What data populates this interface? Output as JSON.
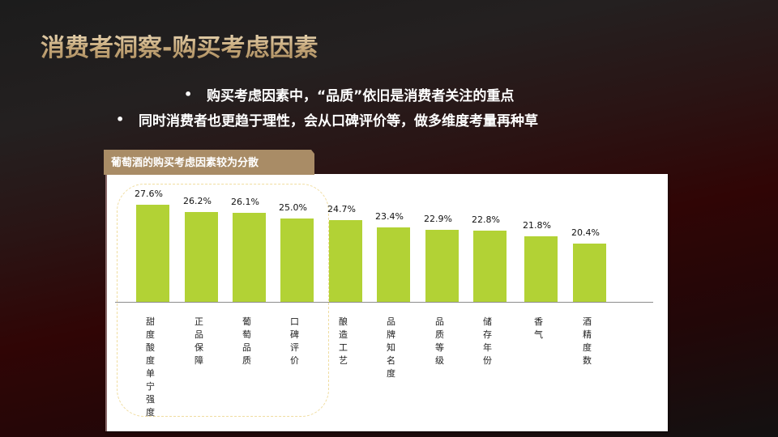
{
  "slide": {
    "title": "消费者洞察-购买考虑因素",
    "bullets": [
      "购买考虑因素中，“品质”依旧是消费者关注的重点",
      "同时消费者也更趋于理性，会从口碑评价等，做多维度考量再种草"
    ],
    "bullet_symbol": "•",
    "section_tag": "葡萄酒的购买考虑因素较为分散"
  },
  "colors": {
    "bar": "#b2d235",
    "tag_background": "#a98c66",
    "title_gold": "#c8aa7c",
    "highlight_border": "#f0dda0"
  },
  "chart_data": {
    "type": "bar",
    "title": "葡萄酒的购买考虑因素较为分散",
    "categories": [
      "甜度酸度单宁强度",
      "正品保障",
      "葡萄品质",
      "口碑评价",
      "酿造工艺",
      "品牌知名度",
      "品质等级",
      "储存年份",
      "香气",
      "酒精度数"
    ],
    "values": [
      27.6,
      26.2,
      26.1,
      25.0,
      24.7,
      23.4,
      22.9,
      22.8,
      21.8,
      20.4
    ],
    "value_labels": [
      "27.6%",
      "26.2%",
      "26.1%",
      "25.0%",
      "24.7%",
      "23.4%",
      "22.9%",
      "22.8%",
      "21.8%",
      "20.4%"
    ],
    "unit": "%",
    "xlabel": "",
    "ylabel": "",
    "grid": false,
    "legend": "none",
    "annotations": [
      "Rounded highlight box around first four categories"
    ]
  }
}
